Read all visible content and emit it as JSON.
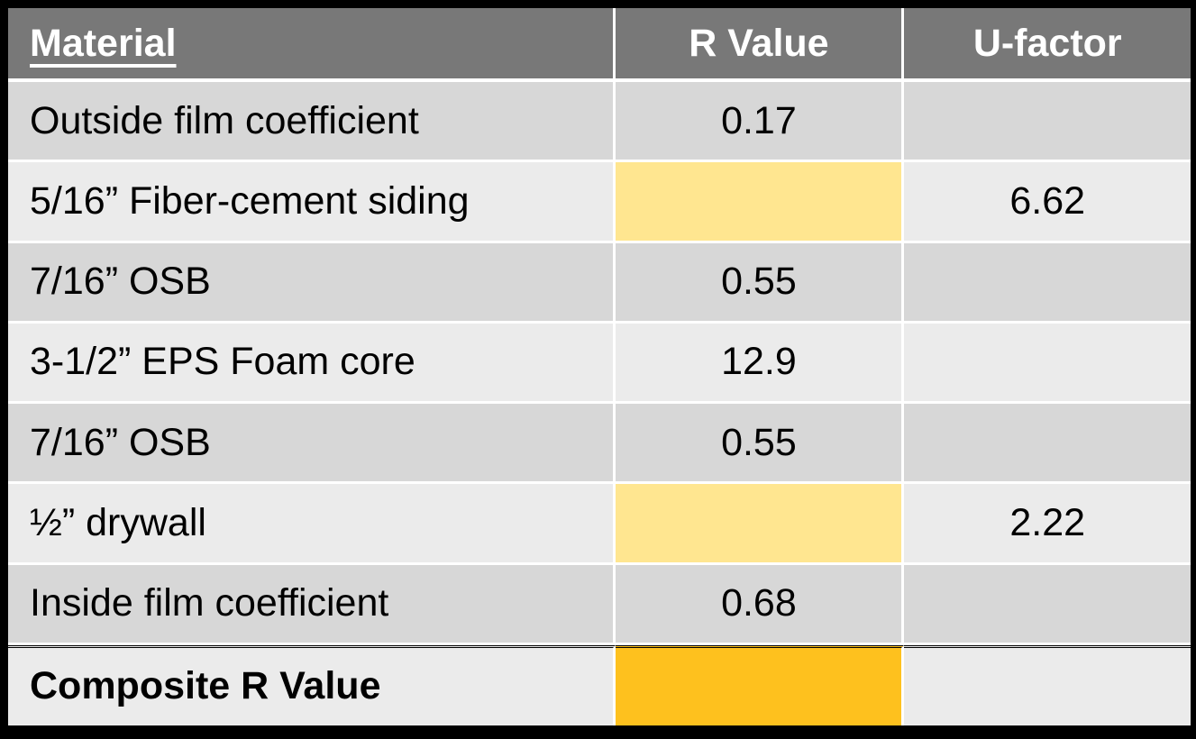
{
  "table": {
    "columns": [
      {
        "label": "Material"
      },
      {
        "label": "R Value"
      },
      {
        "label": "U-factor"
      }
    ],
    "rows": [
      {
        "material": "Outside film coefficient",
        "r_value": "0.17",
        "u_factor": "",
        "r_highlight": "none",
        "bold": false,
        "total": false
      },
      {
        "material": "5/16” Fiber-cement siding",
        "r_value": "",
        "u_factor": "6.62",
        "r_highlight": "yellow",
        "bold": false,
        "total": false
      },
      {
        "material": "7/16” OSB",
        "r_value": "0.55",
        "u_factor": "",
        "r_highlight": "none",
        "bold": false,
        "total": false
      },
      {
        "material": "3-1/2” EPS Foam core",
        "r_value": "12.9",
        "u_factor": "",
        "r_highlight": "none",
        "bold": false,
        "total": false
      },
      {
        "material": "7/16” OSB",
        "r_value": "0.55",
        "u_factor": "",
        "r_highlight": "none",
        "bold": false,
        "total": false
      },
      {
        "material": "½” drywall",
        "r_value": "",
        "u_factor": "2.22",
        "r_highlight": "yellow",
        "bold": false,
        "total": false
      },
      {
        "material": "Inside film coefficient",
        "r_value": "0.68",
        "u_factor": "",
        "r_highlight": "none",
        "bold": false,
        "total": false
      },
      {
        "material": "Composite R Value",
        "r_value": "",
        "u_factor": "",
        "r_highlight": "orange",
        "bold": true,
        "total": true
      }
    ],
    "colors": {
      "frame": "#000000",
      "grid": "#ffffff",
      "header_bg": "#787878",
      "header_text": "#ffffff",
      "band_dark": "#d7d7d7",
      "band_light": "#ebebeb",
      "highlight_yellow": "#ffe690",
      "highlight_orange": "#fec11e"
    }
  }
}
